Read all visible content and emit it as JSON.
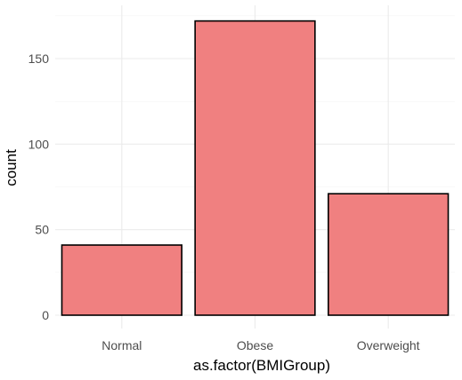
{
  "chart_data": {
    "type": "bar",
    "title": "",
    "xlabel": "as.factor(BMIGroup)",
    "ylabel": "count",
    "categories": [
      "Normal",
      "Obese",
      "Overweight"
    ],
    "values": [
      41,
      172,
      71
    ],
    "ylim": [
      0,
      180
    ],
    "yticks": [
      0,
      50,
      100,
      150
    ],
    "ytick_labels": [
      "0",
      "50",
      "100",
      "150"
    ],
    "grid": true,
    "legend": "none",
    "colors": {
      "bar_fill": "#F08080",
      "bar_stroke": "#000000",
      "grid": "#EBEBEB",
      "background": "#FFFFFF"
    }
  }
}
